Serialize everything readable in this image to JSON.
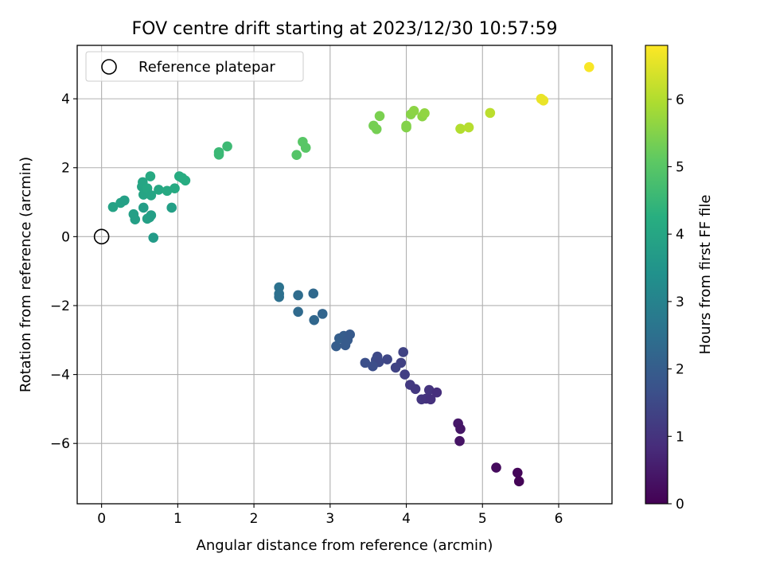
{
  "chart_data": {
    "type": "scatter",
    "title": "FOV centre drift starting at 2023/12/30 10:57:59",
    "xlabel": "Angular distance from reference (arcmin)",
    "ylabel": "Rotation from reference (arcmin)",
    "xlim": [
      -0.32,
      6.7
    ],
    "ylim": [
      -7.75,
      5.55
    ],
    "xticks": [
      0,
      1,
      2,
      3,
      4,
      5,
      6
    ],
    "yticks": [
      -6,
      -4,
      -2,
      0,
      2,
      4
    ],
    "grid": true,
    "legend": {
      "position": "upper-left",
      "entries": [
        "Reference platepar"
      ]
    },
    "reference_point": {
      "x": 0,
      "y": 0
    },
    "colorbar": {
      "label": "Hours from first FF file",
      "range": [
        0,
        6.8
      ],
      "ticks": [
        0,
        1,
        2,
        3,
        4,
        5,
        6
      ],
      "colormap": "viridis"
    },
    "points": [
      {
        "x": 5.18,
        "y": -6.7,
        "c": 0.2
      },
      {
        "x": 5.46,
        "y": -6.85,
        "c": 0.1
      },
      {
        "x": 5.48,
        "y": -7.1,
        "c": 0.05
      },
      {
        "x": 4.68,
        "y": -5.42,
        "c": 0.45
      },
      {
        "x": 4.71,
        "y": -5.58,
        "c": 0.4
      },
      {
        "x": 4.7,
        "y": -5.93,
        "c": 0.35
      },
      {
        "x": 4.05,
        "y": -4.3,
        "c": 1.15
      },
      {
        "x": 4.12,
        "y": -4.42,
        "c": 1.1
      },
      {
        "x": 4.2,
        "y": -4.72,
        "c": 1.05
      },
      {
        "x": 4.26,
        "y": -4.7,
        "c": 1.0
      },
      {
        "x": 4.3,
        "y": -4.45,
        "c": 1.0
      },
      {
        "x": 4.32,
        "y": -4.72,
        "c": 0.95
      },
      {
        "x": 4.4,
        "y": -4.52,
        "c": 0.9
      },
      {
        "x": 3.96,
        "y": -3.35,
        "c": 1.35
      },
      {
        "x": 3.98,
        "y": -4.0,
        "c": 1.25
      },
      {
        "x": 3.93,
        "y": -3.66,
        "c": 1.3
      },
      {
        "x": 3.86,
        "y": -3.8,
        "c": 1.35
      },
      {
        "x": 3.75,
        "y": -3.56,
        "c": 1.45
      },
      {
        "x": 3.62,
        "y": -3.48,
        "c": 1.5
      },
      {
        "x": 3.6,
        "y": -3.58,
        "c": 1.55
      },
      {
        "x": 3.64,
        "y": -3.64,
        "c": 1.5
      },
      {
        "x": 3.56,
        "y": -3.76,
        "c": 1.6
      },
      {
        "x": 3.46,
        "y": -3.66,
        "c": 1.65
      },
      {
        "x": 3.08,
        "y": -3.18,
        "c": 2.0
      },
      {
        "x": 3.12,
        "y": -2.95,
        "c": 2.05
      },
      {
        "x": 3.18,
        "y": -2.88,
        "c": 2.0
      },
      {
        "x": 3.2,
        "y": -3.15,
        "c": 1.95
      },
      {
        "x": 3.23,
        "y": -3.0,
        "c": 1.95
      },
      {
        "x": 3.26,
        "y": -2.84,
        "c": 1.9
      },
      {
        "x": 2.33,
        "y": -1.47,
        "c": 2.55
      },
      {
        "x": 2.33,
        "y": -1.66,
        "c": 2.5
      },
      {
        "x": 2.33,
        "y": -1.75,
        "c": 2.5
      },
      {
        "x": 2.58,
        "y": -1.7,
        "c": 2.4
      },
      {
        "x": 2.58,
        "y": -2.18,
        "c": 2.35
      },
      {
        "x": 2.78,
        "y": -1.65,
        "c": 2.3
      },
      {
        "x": 2.79,
        "y": -2.42,
        "c": 2.25
      },
      {
        "x": 2.9,
        "y": -2.24,
        "c": 2.2
      },
      {
        "x": 0.15,
        "y": 0.86,
        "c": 3.9
      },
      {
        "x": 0.25,
        "y": 0.98,
        "c": 3.9
      },
      {
        "x": 0.3,
        "y": 1.05,
        "c": 3.85
      },
      {
        "x": 0.42,
        "y": 0.65,
        "c": 3.8
      },
      {
        "x": 0.44,
        "y": 0.5,
        "c": 3.8
      },
      {
        "x": 0.55,
        "y": 0.84,
        "c": 3.75
      },
      {
        "x": 0.53,
        "y": 1.45,
        "c": 3.95
      },
      {
        "x": 0.54,
        "y": 1.58,
        "c": 4.0
      },
      {
        "x": 0.55,
        "y": 1.22,
        "c": 3.95
      },
      {
        "x": 0.6,
        "y": 1.4,
        "c": 4.05
      },
      {
        "x": 0.6,
        "y": 0.52,
        "c": 3.85
      },
      {
        "x": 0.63,
        "y": 0.56,
        "c": 3.85
      },
      {
        "x": 0.65,
        "y": 0.62,
        "c": 3.8
      },
      {
        "x": 0.65,
        "y": 1.2,
        "c": 4.0
      },
      {
        "x": 0.64,
        "y": 1.75,
        "c": 4.1
      },
      {
        "x": 0.68,
        "y": -0.03,
        "c": 3.7
      },
      {
        "x": 0.75,
        "y": 1.36,
        "c": 4.05
      },
      {
        "x": 0.86,
        "y": 1.33,
        "c": 4.1
      },
      {
        "x": 0.92,
        "y": 0.84,
        "c": 3.8
      },
      {
        "x": 0.96,
        "y": 1.4,
        "c": 4.1
      },
      {
        "x": 1.02,
        "y": 1.75,
        "c": 4.15
      },
      {
        "x": 1.06,
        "y": 1.7,
        "c": 4.2
      },
      {
        "x": 1.1,
        "y": 1.63,
        "c": 4.2
      },
      {
        "x": 1.54,
        "y": 2.45,
        "c": 4.55
      },
      {
        "x": 1.54,
        "y": 2.38,
        "c": 4.55
      },
      {
        "x": 1.65,
        "y": 2.62,
        "c": 4.6
      },
      {
        "x": 2.56,
        "y": 2.37,
        "c": 4.95
      },
      {
        "x": 2.64,
        "y": 2.75,
        "c": 5.0
      },
      {
        "x": 2.68,
        "y": 2.58,
        "c": 5.0
      },
      {
        "x": 3.57,
        "y": 3.22,
        "c": 5.35
      },
      {
        "x": 3.61,
        "y": 3.12,
        "c": 5.35
      },
      {
        "x": 3.65,
        "y": 3.5,
        "c": 5.4
      },
      {
        "x": 4.0,
        "y": 3.22,
        "c": 5.5
      },
      {
        "x": 4.0,
        "y": 3.17,
        "c": 5.5
      },
      {
        "x": 4.06,
        "y": 3.55,
        "c": 5.55
      },
      {
        "x": 4.1,
        "y": 3.65,
        "c": 5.6
      },
      {
        "x": 4.21,
        "y": 3.49,
        "c": 5.6
      },
      {
        "x": 4.24,
        "y": 3.58,
        "c": 5.65
      },
      {
        "x": 4.71,
        "y": 3.13,
        "c": 6.0
      },
      {
        "x": 4.82,
        "y": 3.17,
        "c": 6.05
      },
      {
        "x": 5.1,
        "y": 3.59,
        "c": 6.1
      },
      {
        "x": 5.77,
        "y": 4.0,
        "c": 6.6
      },
      {
        "x": 5.8,
        "y": 3.95,
        "c": 6.6
      },
      {
        "x": 6.4,
        "y": 4.92,
        "c": 6.75
      }
    ]
  }
}
